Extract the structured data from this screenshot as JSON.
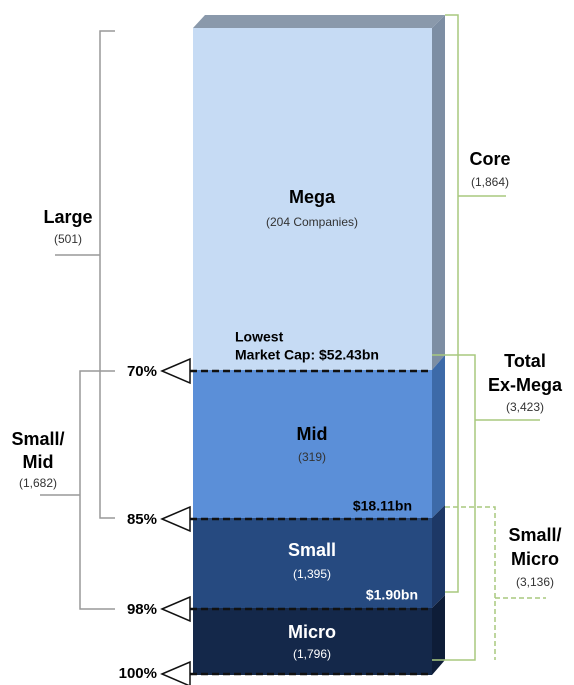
{
  "segments": [
    {
      "label": "Mega",
      "count": "(204 Companies)"
    },
    {
      "label": "Mid",
      "count": "(319)"
    },
    {
      "label": "Small",
      "count": "(1,395)"
    },
    {
      "label": "Micro",
      "count": "(1,796)"
    }
  ],
  "thresholds": [
    {
      "caption": "Lowest",
      "value": "Market Cap: $52.43bn"
    },
    {
      "value": "$18.11bn"
    },
    {
      "value": "$1.90bn"
    }
  ],
  "percentiles": [
    "70%",
    "85%",
    "98%",
    "100%"
  ],
  "left_groups": [
    {
      "label": "Large",
      "count": "(501)"
    },
    {
      "label": "Small/",
      "label2": "Mid",
      "count": "(1,682)"
    }
  ],
  "right_groups": [
    {
      "label": "Core",
      "count": "(1,864)"
    },
    {
      "label": "Total",
      "label2": "Ex-Mega",
      "count": "(3,423)"
    },
    {
      "label": "Small/",
      "label2": "Micro",
      "count": "(3,136)"
    }
  ]
}
